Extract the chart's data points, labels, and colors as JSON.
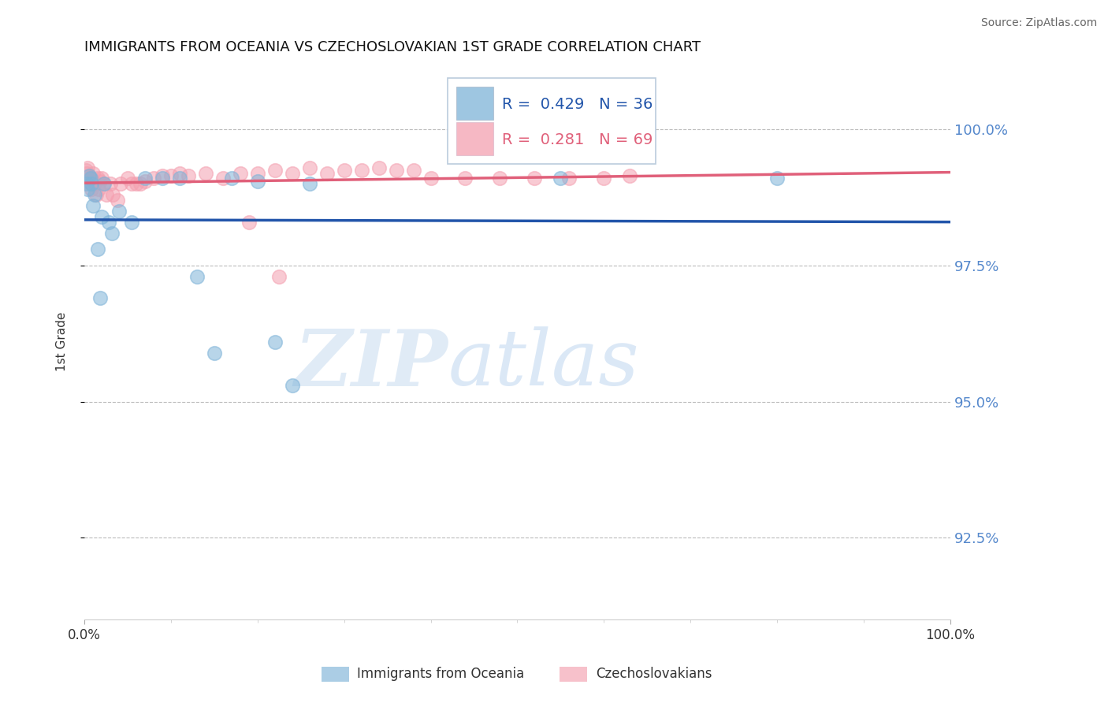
{
  "title": "IMMIGRANTS FROM OCEANIA VS CZECHOSLOVAKIAN 1ST GRADE CORRELATION CHART",
  "source": "Source: ZipAtlas.com",
  "ylabel": "1st Grade",
  "yticks": [
    92.5,
    95.0,
    97.5,
    100.0
  ],
  "ytick_labels": [
    "92.5%",
    "95.0%",
    "97.5%",
    "100.0%"
  ],
  "ylim": [
    91.0,
    101.2
  ],
  "xlim": [
    0.0,
    100.0
  ],
  "legend_label_blue": "Immigrants from Oceania",
  "legend_label_pink": "Czechoslovakians",
  "r_blue": 0.429,
  "n_blue": 36,
  "r_pink": 0.281,
  "n_pink": 69,
  "blue_color": "#7EB3D8",
  "pink_color": "#F4A0B0",
  "blue_line_color": "#2255AA",
  "pink_line_color": "#E0607A",
  "blue_x": [
    0.3,
    0.4,
    0.5,
    0.7,
    0.8,
    1.0,
    1.2,
    1.5,
    1.8,
    2.0,
    2.3,
    2.8,
    3.2,
    4.0,
    5.5,
    7.0,
    9.0,
    11.0,
    13.0,
    15.0,
    17.0,
    20.0,
    22.0,
    24.0,
    26.0,
    55.0,
    80.0
  ],
  "blue_y": [
    99.0,
    98.9,
    99.15,
    99.1,
    99.0,
    98.6,
    98.8,
    97.8,
    96.9,
    98.4,
    99.0,
    98.3,
    98.1,
    98.5,
    98.3,
    99.1,
    99.1,
    99.1,
    97.3,
    95.9,
    99.1,
    99.05,
    96.1,
    95.3,
    99.0,
    99.1,
    99.1
  ],
  "pink_x": [
    0.2,
    0.3,
    0.4,
    0.5,
    0.6,
    0.7,
    0.8,
    1.0,
    1.1,
    1.2,
    1.4,
    1.5,
    1.6,
    1.8,
    2.0,
    2.2,
    2.5,
    3.0,
    3.3,
    3.8,
    4.2,
    5.0,
    5.5,
    6.0,
    6.5,
    7.0,
    8.0,
    9.0,
    10.0,
    11.0,
    12.0,
    14.0,
    16.0,
    18.0,
    20.0,
    22.0,
    24.0,
    26.0,
    28.0,
    30.0,
    32.0,
    34.0,
    36.0,
    38.0,
    40.0,
    44.0,
    48.0,
    52.0,
    56.0,
    60.0,
    63.0,
    19.0,
    22.5
  ],
  "pink_y": [
    99.25,
    99.2,
    99.3,
    99.15,
    99.1,
    99.0,
    98.9,
    99.2,
    99.05,
    99.0,
    98.8,
    99.1,
    98.9,
    99.05,
    99.1,
    99.0,
    98.8,
    99.0,
    98.8,
    98.7,
    99.0,
    99.1,
    99.0,
    99.0,
    99.0,
    99.05,
    99.1,
    99.15,
    99.15,
    99.2,
    99.15,
    99.2,
    99.1,
    99.2,
    99.2,
    99.25,
    99.2,
    99.3,
    99.2,
    99.25,
    99.25,
    99.3,
    99.25,
    99.25,
    99.1,
    99.1,
    99.1,
    99.1,
    99.1,
    99.1,
    99.15,
    98.3,
    97.3
  ]
}
